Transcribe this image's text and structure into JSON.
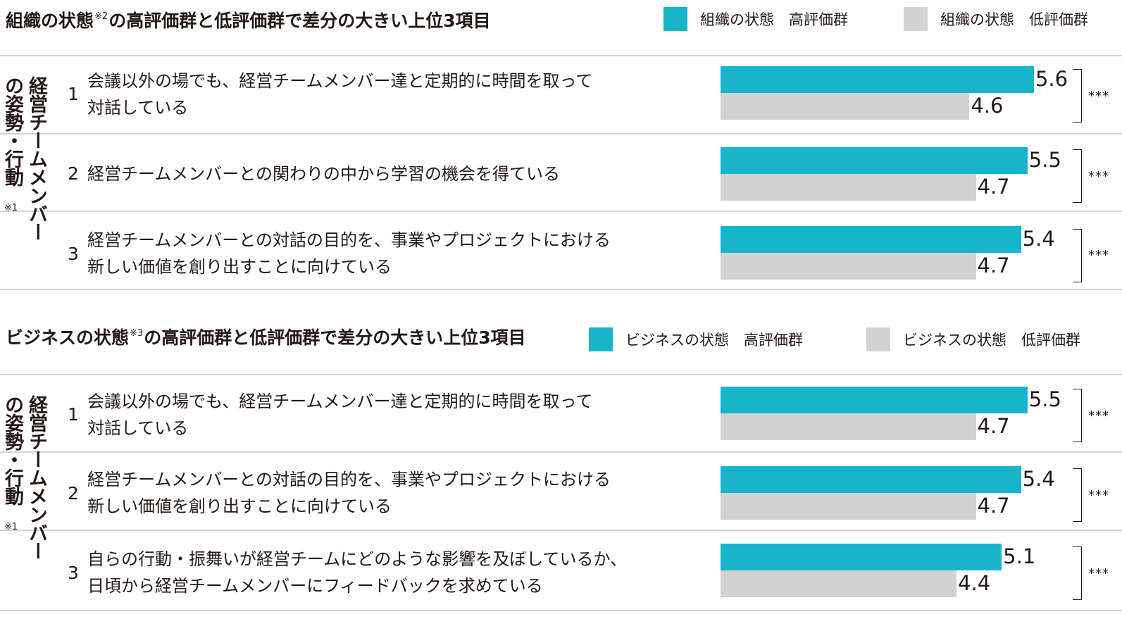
{
  "chart_data": [
    {
      "type": "bar",
      "title_parts": [
        "組織の状態",
        "※2",
        "の高評価群と低評価群で差分の大きい上位3項目"
      ],
      "side_label": "経営チームメンバーの姿勢・行動",
      "side_label_cols": [
        "経営チームメンバー",
        "の姿勢・行動"
      ],
      "side_note": "※1",
      "series": [
        {
          "name": "組織の状態　高評価群",
          "color": "#16b5c9",
          "values": [
            5.6,
            5.5,
            5.4
          ]
        },
        {
          "name": "組織の状態　低評価群",
          "color": "#d2d2d2",
          "values": [
            4.6,
            4.7,
            4.7
          ]
        }
      ],
      "items": [
        {
          "rank": "1",
          "lines": [
            "会議以外の場でも、経営チームメンバー達と定期的に時間を取って",
            "対話している"
          ],
          "high": 5.6,
          "low": 4.6,
          "high_label": "5.6",
          "low_label": "4.6",
          "sig": "***"
        },
        {
          "rank": "2",
          "lines": [
            "経営チームメンバーとの関わりの中から学習の機会を得ている"
          ],
          "high": 5.5,
          "low": 4.7,
          "high_label": "5.5",
          "low_label": "4.7",
          "sig": "***"
        },
        {
          "rank": "3",
          "lines": [
            "経営チームメンバーとの対話の目的を、事業やプロジェクトにおける",
            "新しい価値を創り出すことに向けている"
          ],
          "high": 5.4,
          "low": 4.7,
          "high_label": "5.4",
          "low_label": "4.7",
          "sig": "***"
        }
      ]
    },
    {
      "type": "bar",
      "title_parts": [
        "ビジネスの状態",
        "※3",
        "の高評価群と低評価群で差分の大きい上位3項目"
      ],
      "side_label": "経営チームメンバーの姿勢・行動",
      "side_label_cols": [
        "経営チームメンバー",
        "の姿勢・行動"
      ],
      "side_note": "※1",
      "series": [
        {
          "name": "ビジネスの状態　高評価群",
          "color": "#16b5c9",
          "values": [
            5.5,
            5.4,
            5.1
          ]
        },
        {
          "name": "ビジネスの状態　低評価群",
          "color": "#d2d2d2",
          "values": [
            4.7,
            4.7,
            4.4
          ]
        }
      ],
      "items": [
        {
          "rank": "1",
          "lines": [
            "会議以外の場でも、経営チームメンバー達と定期的に時間を取って",
            "対話している"
          ],
          "high": 5.5,
          "low": 4.7,
          "high_label": "5.5",
          "low_label": "4.7",
          "sig": "***"
        },
        {
          "rank": "2",
          "lines": [
            "経営チームメンバーとの対話の目的を、事業やプロジェクトにおける",
            "新しい価値を創り出すことに向けている"
          ],
          "high": 5.4,
          "low": 4.7,
          "high_label": "5.4",
          "low_label": "4.7",
          "sig": "***"
        },
        {
          "rank": "3",
          "lines": [
            "自らの行動・振舞いが経営チームにどのような影響を及ぼしているか、",
            "日頃から経営チームメンバーにフィードバックを求めている"
          ],
          "high": 5.1,
          "low": 4.4,
          "high_label": "5.1",
          "low_label": "4.4",
          "sig": "***"
        }
      ]
    }
  ]
}
